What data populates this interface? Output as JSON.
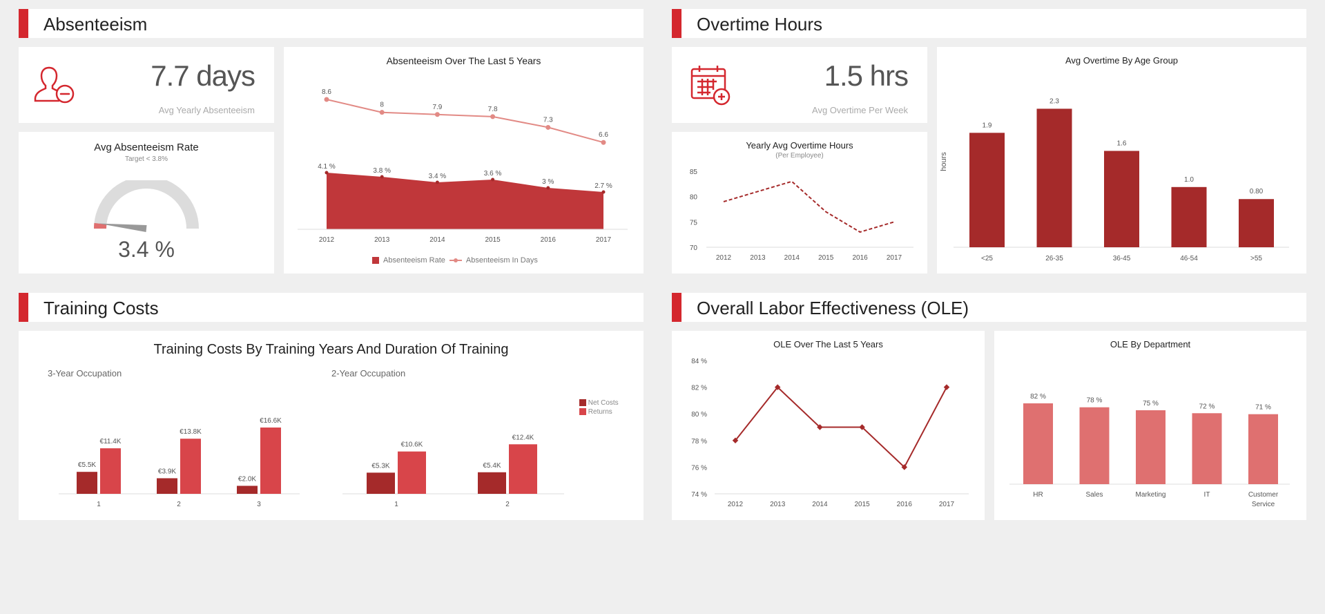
{
  "sections": {
    "absenteeism": "Absenteeism",
    "overtime": "Overtime Hours",
    "training": "Training Costs",
    "ole": "Overall Labor Effectiveness (OLE)"
  },
  "kpis": {
    "absenteeism": {
      "value": "7.7 days",
      "label": "Avg Yearly Absenteeism",
      "icon": "user-minus-icon"
    },
    "overtime": {
      "value": "1.5 hrs",
      "label": "Avg Overtime Per Week",
      "icon": "calendar-plus-icon"
    }
  },
  "colors": {
    "accent": "#d4272e",
    "dark_red": "#a52a2a",
    "mid_red": "#c0373a",
    "light_red": "#df7070",
    "salmon": "#e28a85"
  },
  "chart_data": [
    {
      "id": "gauge",
      "type": "gauge",
      "title": "Avg Absenteeism Rate",
      "subtitle": "Target < 3.8%",
      "value": 3.4,
      "value_label": "3.4 %"
    },
    {
      "id": "absenteeism",
      "type": "area",
      "title": "Absenteeism Over The Last 5 Years",
      "categories": [
        "2012",
        "2013",
        "2014",
        "2015",
        "2016",
        "2017"
      ],
      "series": [
        {
          "name": "Absenteeism Rate",
          "type": "area",
          "values": [
            4.1,
            3.8,
            3.4,
            3.6,
            3.0,
            2.7
          ],
          "labels": [
            "4.1 %",
            "3.8 %",
            "3.4 %",
            "3.6 %",
            "3 %",
            "2.7 %"
          ]
        },
        {
          "name": "Absenteeism In Days",
          "type": "line",
          "values": [
            8.6,
            8,
            7.9,
            7.8,
            7.3,
            6.6
          ],
          "labels": [
            "8.6",
            "8",
            "7.9",
            "7.8",
            "7.3",
            "6.6"
          ]
        }
      ],
      "legend": "bottom"
    },
    {
      "id": "overtime_line",
      "type": "line",
      "title": "Yearly Avg Overtime Hours",
      "subtitle": "(Per Employee)",
      "categories": [
        "2012",
        "2013",
        "2014",
        "2015",
        "2016",
        "2017"
      ],
      "values": [
        79,
        81,
        83,
        77,
        73,
        75
      ],
      "yticks": [
        "85",
        "80",
        "75",
        "70"
      ],
      "ylim": [
        70,
        85
      ]
    },
    {
      "id": "overtime_age",
      "type": "bar",
      "title": "Avg Overtime By Age Group",
      "ylabel": "hours",
      "categories": [
        "<25",
        "26-35",
        "36-45",
        "46-54",
        ">55"
      ],
      "values": [
        1.9,
        2.3,
        1.6,
        1.0,
        0.8
      ],
      "labels": [
        "1.9",
        "2.3",
        "1.6",
        "1.0",
        "0.80"
      ],
      "ylim": [
        0,
        2.5
      ]
    },
    {
      "id": "training",
      "type": "bar",
      "title": "Training Costs By Training Years And Duration Of Training",
      "groups": [
        {
          "name": "3-Year Occupation",
          "categories": [
            "1",
            "2",
            "3"
          ],
          "net_costs": [
            5.5,
            3.9,
            2.0
          ],
          "net_labels": [
            "€5.5K",
            "€3.9K",
            "€2.0K"
          ],
          "returns": [
            11.4,
            13.8,
            16.6
          ],
          "ret_labels": [
            "€11.4K",
            "€13.8K",
            "€16.6K"
          ]
        },
        {
          "name": "2-Year Occupation",
          "categories": [
            "1",
            "2"
          ],
          "net_costs": [
            5.3,
            5.4
          ],
          "net_labels": [
            "€5.3K",
            "€5.4K"
          ],
          "returns": [
            10.6,
            12.4
          ],
          "ret_labels": [
            "€10.6K",
            "€12.4K"
          ]
        }
      ],
      "legend": [
        "Net Costs",
        "Returns"
      ]
    },
    {
      "id": "ole_line",
      "type": "line",
      "title": "OLE Over The Last 5 Years",
      "categories": [
        "2012",
        "2013",
        "2014",
        "2015",
        "2016",
        "2017"
      ],
      "values": [
        78,
        82,
        79,
        79,
        76,
        82
      ],
      "yticks": [
        "84 %",
        "82 %",
        "80 %",
        "78 %",
        "76 %",
        "74 %"
      ],
      "ylim": [
        74,
        84
      ]
    },
    {
      "id": "ole_dept",
      "type": "bar",
      "title": "OLE By Department",
      "categories": [
        "HR",
        "Sales",
        "Marketing",
        "IT",
        "Customer Service"
      ],
      "values": [
        82,
        78,
        75,
        72,
        71
      ],
      "labels": [
        "82 %",
        "78 %",
        "75 %",
        "72 %",
        "71 %"
      ]
    }
  ]
}
